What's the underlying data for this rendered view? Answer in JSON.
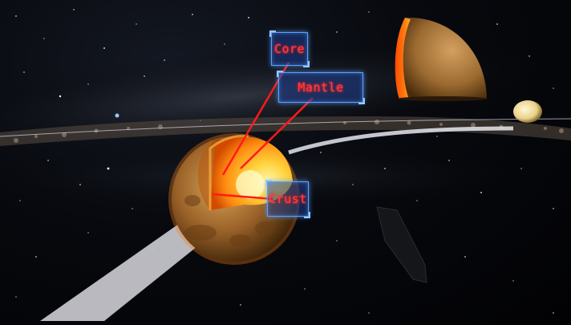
{
  "scene": {
    "labels": {
      "core": "Core",
      "mantle": "Mantle",
      "crust": "Crust"
    },
    "colors": {
      "label_text": "#ff3b3b",
      "label_border": "#5aa0ff",
      "pointer_line": "#ff1a1a",
      "planet_surface": "#b57a30",
      "core_glow": "#ffd84a"
    }
  }
}
